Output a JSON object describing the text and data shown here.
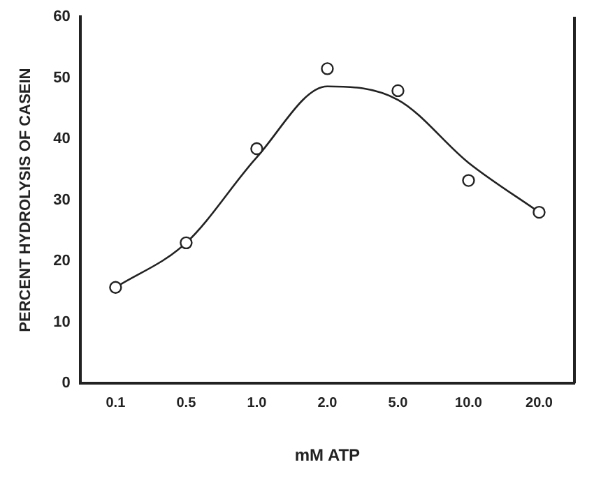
{
  "chart_data": {
    "type": "scatter",
    "xlabel": "mM ATP",
    "ylabel": "PERCENT HYDROLYSIS OF CASEIN",
    "categories": [
      "0.1",
      "0.5",
      "1.0",
      "2.0",
      "5.0",
      "10.0",
      "20.0"
    ],
    "ylim": [
      0,
      60
    ],
    "yticks": [
      0,
      10,
      20,
      30,
      40,
      50,
      60
    ],
    "grid": false,
    "legend": false,
    "series": [
      {
        "type": "scatter",
        "color": "#222222",
        "marker": "circle",
        "values": [
          15.7,
          23.0,
          38.4,
          51.5,
          47.9,
          33.2,
          28.0
        ]
      },
      {
        "type": "line",
        "color": "#222222",
        "marker": "none",
        "line_style": "solid",
        "values": [
          15.7,
          23.0,
          37.0,
          48.6,
          46.4,
          36.1,
          28.0
        ]
      }
    ]
  }
}
